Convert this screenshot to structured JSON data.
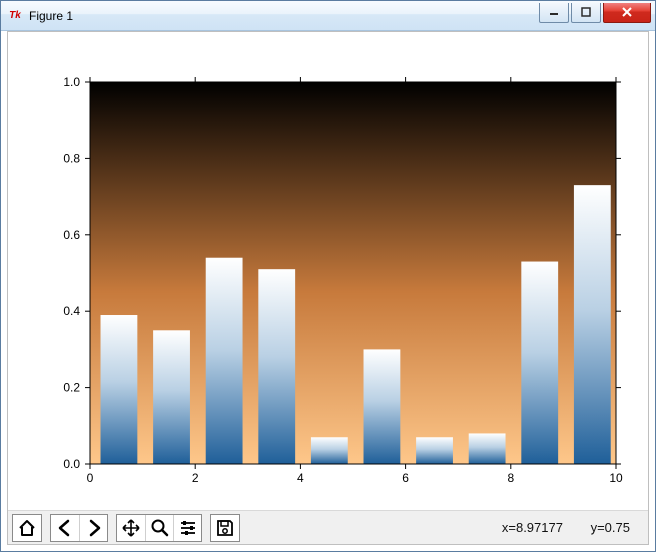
{
  "window": {
    "title": "Figure 1",
    "buttons": {
      "minimize": "minimize",
      "maximize": "maximize",
      "close": "close"
    }
  },
  "chart": {
    "type": "bar",
    "ylim": [
      0.0,
      1.0
    ],
    "yticks": [
      0.0,
      0.2,
      0.4,
      0.6,
      0.8,
      1.0
    ],
    "ytick_labels": [
      "0.0",
      "0.2",
      "0.4",
      "0.6",
      "0.8",
      "1.0"
    ],
    "xlim": [
      0,
      10
    ],
    "xticks": [
      0,
      2,
      4,
      6,
      8,
      10
    ],
    "xtick_labels": [
      "0",
      "2",
      "4",
      "6",
      "8",
      "10"
    ],
    "bar_left_edges": [
      0.2,
      1.2,
      2.2,
      3.2,
      4.2,
      5.2,
      6.2,
      7.2,
      8.2,
      9.2
    ],
    "bar_width": 0.7,
    "bar_values": [
      0.39,
      0.35,
      0.54,
      0.51,
      0.07,
      0.3,
      0.07,
      0.08,
      0.53,
      0.73
    ],
    "background_gradient": {
      "top_color": "#000000",
      "mid_color": "#c77a3c",
      "bottom_color": "#fec78a"
    },
    "bar_gradient": {
      "top_color": "#ffffff",
      "mid_color": "#b9d0e4",
      "bottom_color": "#1f5f99"
    },
    "axis_color": "#000000",
    "tick_font_size": 12,
    "canvas_background": "#ffffff"
  },
  "toolbar": {
    "buttons": [
      "home",
      "back",
      "forward",
      "pan",
      "zoom",
      "configure",
      "save"
    ]
  },
  "status": {
    "x_label": "x=8.97177",
    "y_label": "y=0.75"
  }
}
